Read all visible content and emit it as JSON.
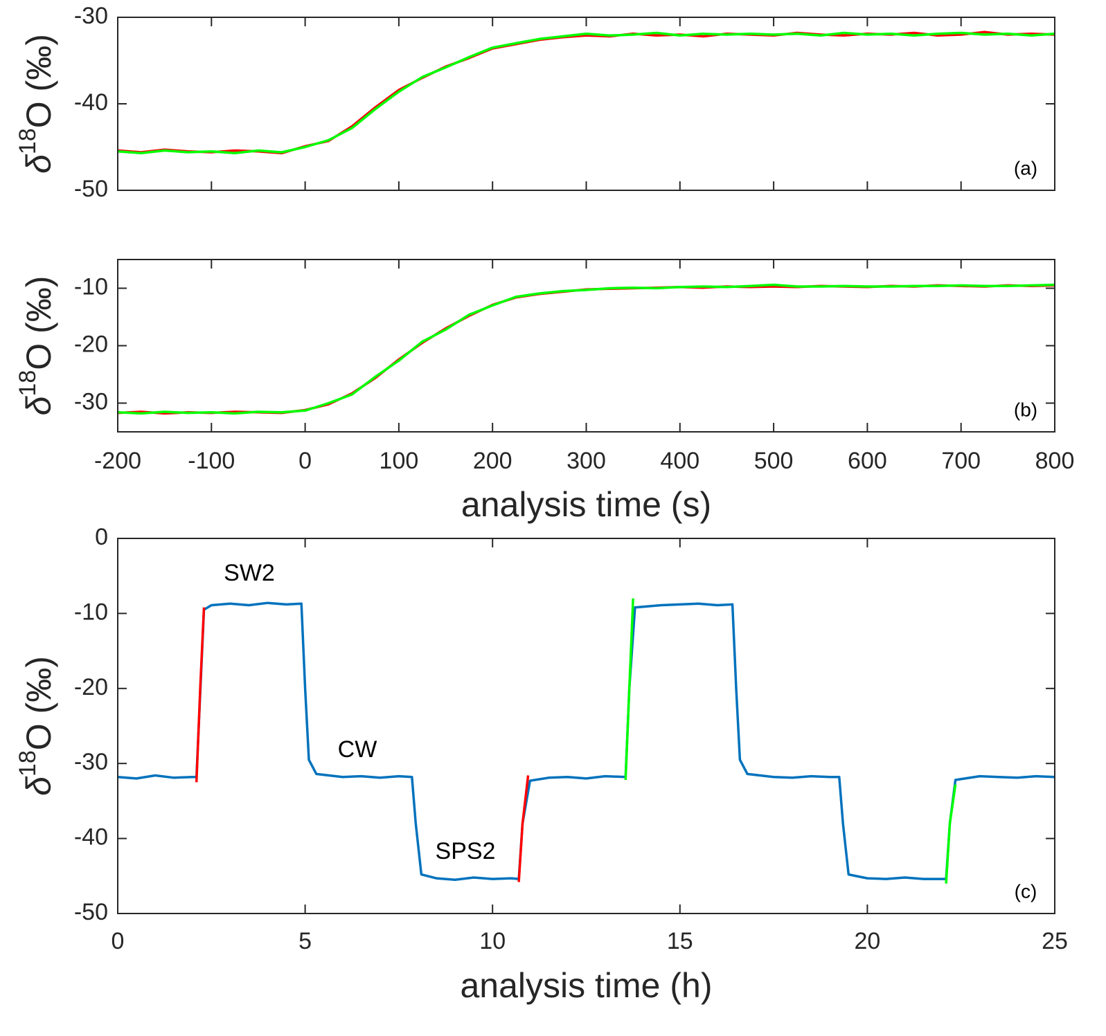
{
  "chart_data": [
    {
      "type": "line",
      "xlim": [
        -200,
        800
      ],
      "ylim": [
        -50,
        -30
      ],
      "xticks": [
        -200,
        -100,
        0,
        100,
        200,
        300,
        400,
        500,
        600,
        700,
        800
      ],
      "xtick_labels": false,
      "yticks": [
        -30,
        -40,
        -50
      ],
      "ylabel": {
        "delta": "δ",
        "sup": "18",
        "rest": "O (‰)"
      },
      "panel_label": "(a)",
      "x": [
        -200,
        -175,
        -150,
        -125,
        -100,
        -75,
        -50,
        -25,
        0,
        25,
        50,
        75,
        100,
        125,
        150,
        175,
        200,
        225,
        250,
        275,
        300,
        325,
        350,
        375,
        400,
        425,
        450,
        475,
        500,
        525,
        550,
        575,
        600,
        625,
        650,
        675,
        700,
        725,
        750,
        775,
        800
      ],
      "series": [
        {
          "color": "#ff0000",
          "values": [
            -45.4,
            -45.6,
            -45.3,
            -45.5,
            -45.6,
            -45.4,
            -45.5,
            -45.7,
            -44.9,
            -44.3,
            -42.6,
            -40.4,
            -38.4,
            -37.0,
            -35.7,
            -34.7,
            -33.6,
            -33.1,
            -32.6,
            -32.3,
            -32.1,
            -32.2,
            -31.9,
            -32.1,
            -32.0,
            -32.2,
            -31.9,
            -32.0,
            -32.1,
            -31.8,
            -32.0,
            -32.1,
            -31.9,
            -32.0,
            -31.8,
            -32.1,
            -32.0,
            -31.7,
            -32.0,
            -31.9,
            -32.0
          ]
        },
        {
          "color": "#00ff00",
          "values": [
            -45.5,
            -45.7,
            -45.4,
            -45.6,
            -45.5,
            -45.7,
            -45.4,
            -45.6,
            -45.0,
            -44.2,
            -42.8,
            -40.6,
            -38.6,
            -36.9,
            -35.8,
            -34.6,
            -33.5,
            -33.0,
            -32.5,
            -32.2,
            -31.9,
            -32.1,
            -32.0,
            -31.8,
            -32.1,
            -31.9,
            -32.0,
            -31.9,
            -32.0,
            -31.9,
            -32.1,
            -31.8,
            -32.0,
            -31.9,
            -32.1,
            -31.9,
            -31.8,
            -32.0,
            -31.9,
            -32.1,
            -31.9
          ]
        }
      ]
    },
    {
      "type": "line",
      "xlim": [
        -200,
        800
      ],
      "ylim": [
        -35,
        -5
      ],
      "xticks": [
        -200,
        -100,
        0,
        100,
        200,
        300,
        400,
        500,
        600,
        700,
        800
      ],
      "xtick_labels": true,
      "yticks": [
        -30,
        -20,
        -10
      ],
      "xlabel": "analysis time (s)",
      "ylabel": {
        "delta": "δ",
        "sup": "18",
        "rest": "O (‰)"
      },
      "panel_label": "(b)",
      "x": [
        -200,
        -175,
        -150,
        -125,
        -100,
        -75,
        -50,
        -25,
        0,
        25,
        50,
        75,
        100,
        125,
        150,
        175,
        200,
        225,
        250,
        275,
        300,
        325,
        350,
        375,
        400,
        425,
        450,
        475,
        500,
        525,
        550,
        575,
        600,
        625,
        650,
        675,
        700,
        725,
        750,
        775,
        800
      ],
      "series": [
        {
          "color": "#ff0000",
          "values": [
            -31.7,
            -31.5,
            -31.8,
            -31.6,
            -31.7,
            -31.5,
            -31.6,
            -31.7,
            -31.2,
            -30.2,
            -28.3,
            -25.6,
            -22.4,
            -19.5,
            -17.0,
            -14.8,
            -12.9,
            -11.6,
            -11.0,
            -10.6,
            -10.2,
            -10.1,
            -10.0,
            -9.9,
            -9.8,
            -9.9,
            -9.7,
            -9.8,
            -9.7,
            -9.8,
            -9.6,
            -9.7,
            -9.8,
            -9.6,
            -9.7,
            -9.5,
            -9.6,
            -9.7,
            -9.5,
            -9.6,
            -9.5
          ]
        },
        {
          "color": "#00ff00",
          "values": [
            -31.6,
            -31.8,
            -31.5,
            -31.7,
            -31.6,
            -31.8,
            -31.5,
            -31.6,
            -31.3,
            -30.0,
            -28.5,
            -25.4,
            -22.6,
            -19.3,
            -17.2,
            -14.6,
            -13.0,
            -11.5,
            -10.9,
            -10.5,
            -10.3,
            -10.0,
            -9.9,
            -10.0,
            -9.8,
            -9.7,
            -9.8,
            -9.6,
            -9.4,
            -9.7,
            -9.7,
            -9.6,
            -9.7,
            -9.7,
            -9.6,
            -9.6,
            -9.5,
            -9.6,
            -9.6,
            -9.5,
            -9.4
          ]
        }
      ]
    },
    {
      "type": "line",
      "xlim": [
        0,
        25
      ],
      "ylim": [
        -50,
        0
      ],
      "xticks": [
        0,
        5,
        10,
        15,
        20,
        25
      ],
      "xtick_labels": true,
      "yticks": [
        0,
        -10,
        -20,
        -30,
        -40,
        -50
      ],
      "xlabel": "analysis time (h)",
      "ylabel": {
        "delta": "δ",
        "sup": "18",
        "rest": "O (‰)"
      },
      "panel_label": "(c)",
      "annotations": [
        "SW2",
        "CW",
        "SPS2"
      ],
      "series": [
        {
          "color": "#0072bd",
          "x": [
            0,
            0.5,
            1,
            1.5,
            2,
            2.1,
            2.3,
            2.5,
            3,
            3.5,
            4,
            4.5,
            4.9,
            5.0,
            5.1,
            5.3,
            6,
            6.5,
            7,
            7.5,
            7.85,
            7.95,
            8.1,
            8.5,
            9,
            9.5,
            10,
            10.5,
            10.7,
            10.8,
            11,
            11.5,
            12,
            12.5,
            13,
            13.55,
            13.65,
            13.8,
            14.5,
            15,
            15.5,
            16,
            16.4,
            16.5,
            16.6,
            16.8,
            17.5,
            18,
            18.5,
            19,
            19.25,
            19.35,
            19.5,
            20,
            20.5,
            21,
            21.5,
            22.1,
            22.2,
            22.35,
            23,
            23.5,
            24,
            24.5,
            25
          ],
          "values": [
            -31.8,
            -32.0,
            -31.6,
            -31.9,
            -31.8,
            -31.8,
            -9.5,
            -8.9,
            -8.7,
            -8.9,
            -8.6,
            -8.8,
            -8.7,
            -20,
            -29.5,
            -31.4,
            -31.8,
            -31.7,
            -31.9,
            -31.7,
            -31.8,
            -38,
            -44.8,
            -45.3,
            -45.5,
            -45.2,
            -45.4,
            -45.3,
            -45.4,
            -38,
            -32.3,
            -31.9,
            -31.8,
            -32.0,
            -31.7,
            -31.8,
            -20,
            -9.2,
            -8.9,
            -8.8,
            -8.7,
            -8.9,
            -8.8,
            -20,
            -29.5,
            -31.4,
            -31.8,
            -31.9,
            -31.7,
            -31.8,
            -31.8,
            -38,
            -44.8,
            -45.3,
            -45.4,
            -45.2,
            -45.4,
            -45.4,
            -38,
            -32.2,
            -31.7,
            -31.8,
            -31.9,
            -31.7,
            -31.8
          ]
        },
        {
          "color": "#ff0000",
          "x": [
            2.1,
            2.2,
            2.3,
            null,
            10.7,
            10.8,
            10.95
          ],
          "values": [
            -32.5,
            -20,
            -9.2,
            null,
            -45.8,
            -38,
            -31.6
          ]
        },
        {
          "color": "#00ff00",
          "x": [
            13.55,
            13.65,
            13.75,
            null,
            22.1,
            22.2,
            22.35
          ],
          "values": [
            -32.2,
            -20,
            -8.0,
            null,
            -46.0,
            -38,
            -32.8
          ]
        }
      ]
    }
  ]
}
